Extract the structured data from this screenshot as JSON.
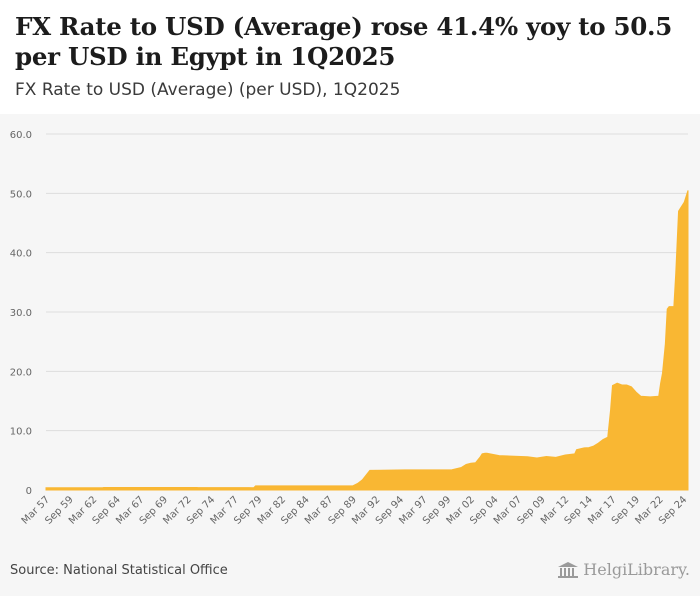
{
  "title": "FX Rate to USD (Average) rose 41.4% yoy to 50.5 per USD in Egypt in 1Q2025",
  "subtitle": "FX Rate to USD (Average) (per USD), 1Q2025",
  "source": "Source: National Statistical Office",
  "logo_text": "HelgiLibrary.",
  "colors": {
    "area": "#f9b733",
    "grid": "#dddddd",
    "axis_text": "#666666"
  },
  "chart_data": {
    "type": "area",
    "title": "FX Rate to USD (Average) (per USD), 1Q2025",
    "xlabel": "",
    "ylabel": "",
    "ylim": [
      0,
      60
    ],
    "yticks": [
      0,
      10.0,
      20.0,
      30.0,
      40.0,
      50.0,
      60.0
    ],
    "ytick_labels": [
      "0",
      "10.0",
      "20.0",
      "30.0",
      "40.0",
      "50.0",
      "60.0"
    ],
    "xlim": [
      1957.0,
      2025.0
    ],
    "xtick_labels": [
      "Mar 57",
      "Sep 59",
      "Mar 62",
      "Sep 64",
      "Mar 67",
      "Sep 69",
      "Mar 72",
      "Sep 74",
      "Mar 77",
      "Sep 79",
      "Mar 82",
      "Sep 84",
      "Mar 87",
      "Sep 89",
      "Mar 92",
      "Sep 94",
      "Mar 97",
      "Sep 99",
      "Mar 02",
      "Sep 04",
      "Mar 07",
      "Sep 09",
      "Mar 12",
      "Sep 14",
      "Mar 17",
      "Sep 19",
      "Mar 22",
      "Sep 24"
    ],
    "xtick_positions": [
      1957.0,
      1959.5,
      1962.0,
      1964.5,
      1967.0,
      1969.5,
      1972.0,
      1974.5,
      1977.0,
      1979.5,
      1982.0,
      1984.5,
      1987.0,
      1989.5,
      1992.0,
      1994.5,
      1997.0,
      1999.5,
      2002.0,
      2004.5,
      2007.0,
      2009.5,
      2012.0,
      2014.5,
      2017.0,
      2019.5,
      2022.0,
      2024.5
    ],
    "x": [
      1957.0,
      1963.0,
      1963.1,
      1973.0,
      1973.1,
      1978.5,
      1979.0,
      1979.2,
      1983.0,
      1988.0,
      1989.5,
      1990.0,
      1990.5,
      1991.0,
      1991.3,
      1995.0,
      2000.0,
      2001.0,
      2001.5,
      2002.0,
      2002.5,
      2003.0,
      2003.2,
      2003.5,
      2003.7,
      2005.0,
      2008.0,
      2009.0,
      2010.0,
      2011.0,
      2012.0,
      2013.0,
      2013.2,
      2014.0,
      2014.5,
      2015.0,
      2015.5,
      2016.0,
      2016.5,
      2016.8,
      2017.0,
      2017.5,
      2018.0,
      2018.5,
      2019.0,
      2019.5,
      2020.0,
      2021.0,
      2021.9,
      2022.1,
      2022.3,
      2022.6,
      2022.8,
      2023.0,
      2023.2,
      2023.5,
      2023.7,
      2024.0,
      2024.2,
      2024.6,
      2025.0
    ],
    "values": [
      0.39,
      0.39,
      0.43,
      0.43,
      0.4,
      0.4,
      0.39,
      0.7,
      0.7,
      0.7,
      0.7,
      1.1,
      1.7,
      2.7,
      3.3,
      3.39,
      3.42,
      3.8,
      4.3,
      4.5,
      4.6,
      5.6,
      6.1,
      6.2,
      6.2,
      5.8,
      5.6,
      5.4,
      5.65,
      5.5,
      5.9,
      6.1,
      6.8,
      7.1,
      7.15,
      7.4,
      7.9,
      8.5,
      8.9,
      13.5,
      17.6,
      18.0,
      17.7,
      17.7,
      17.4,
      16.5,
      15.8,
      15.7,
      15.8,
      18.0,
      19.7,
      24.6,
      30.5,
      30.9,
      30.9,
      30.9,
      36.5,
      47.0,
      47.5,
      48.5,
      50.5
    ]
  }
}
